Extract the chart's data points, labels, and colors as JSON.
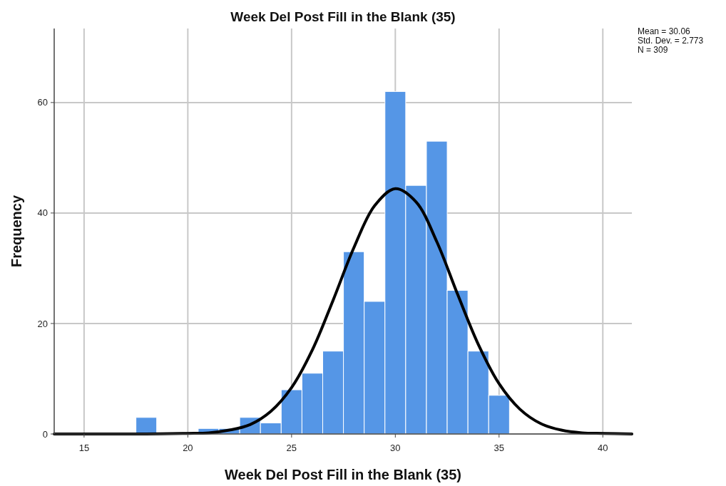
{
  "chart_data": {
    "type": "histogram",
    "title": "Week Del  Post Fill in the Blank (35)",
    "xlabel": "Week Del  Post Fill in the Blank (35)",
    "ylabel": "Frequency",
    "bins": [
      17.5,
      18.5,
      19.5,
      20.5,
      21.5,
      22.5,
      23.5,
      24.5,
      25.5,
      26.5,
      27.5,
      28.5,
      29.5,
      30.5,
      31.5,
      32.5,
      33.5,
      34.5,
      35.5
    ],
    "values": [
      3,
      0,
      0,
      1,
      1,
      3,
      2,
      8,
      11,
      15,
      33,
      24,
      62,
      45,
      53,
      26,
      15,
      7
    ],
    "color": "#5596e6",
    "series": [
      {
        "type": "line",
        "color": "#000000",
        "x": [
          13.56,
          16,
          18,
          20,
          21,
          22,
          23,
          24,
          25,
          26,
          27,
          28,
          29,
          30,
          31,
          32,
          33,
          34,
          35,
          36,
          37,
          38,
          39,
          40,
          41.4
        ],
        "values": [
          0,
          0,
          0,
          0.1,
          0.2,
          0.7,
          1.7,
          4.1,
          8.4,
          15.2,
          24.2,
          33.7,
          41.3,
          44.4,
          42,
          34.8,
          25.3,
          16.2,
          9.1,
          4.5,
          1.9,
          0.7,
          0.2,
          0.1,
          0
        ]
      }
    ],
    "xlim": [
      13.56,
      41.4
    ],
    "ylim": [
      0,
      73.4
    ],
    "xticks": [
      15,
      20,
      25,
      30,
      35,
      40
    ],
    "yticks": [
      0,
      20,
      40,
      60
    ],
    "grid": true,
    "line_style": "solid",
    "marker": "none",
    "annotations": [
      "Mean = 30.06",
      "Std. Dev. = 2.773",
      "N = 309"
    ]
  }
}
